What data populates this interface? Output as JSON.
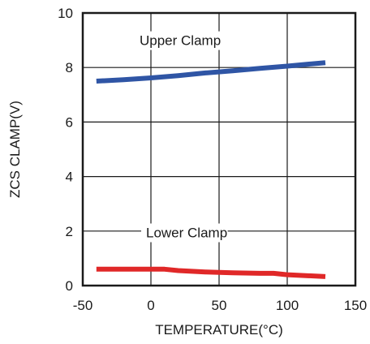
{
  "chart_data": {
    "type": "line",
    "xlabel": "TEMPERATURE(°C)",
    "ylabel": "ZCS CLAMP(V)",
    "xlim": [
      -50,
      150
    ],
    "ylim": [
      0,
      10
    ],
    "xticks": [
      -50,
      0,
      50,
      100,
      150
    ],
    "yticks": [
      0,
      2,
      4,
      6,
      8,
      10
    ],
    "x_tick_labels": [
      "-50",
      "0",
      "50",
      "100",
      "150"
    ],
    "y_tick_labels": [
      "0",
      "2",
      "4",
      "6",
      "8",
      "10"
    ],
    "grid": true,
    "series": [
      {
        "name": "Upper Clamp",
        "color": "#2f55a5",
        "x": [
          -40,
          -20,
          0,
          20,
          40,
          60,
          80,
          100,
          128
        ],
        "y": [
          7.5,
          7.55,
          7.62,
          7.7,
          7.8,
          7.88,
          7.97,
          8.05,
          8.18
        ]
      },
      {
        "name": "Lower Clamp",
        "color": "#e02828",
        "x": [
          -40,
          -20,
          0,
          10,
          20,
          40,
          60,
          80,
          90,
          100,
          128
        ],
        "y": [
          0.6,
          0.6,
          0.6,
          0.6,
          0.55,
          0.5,
          0.47,
          0.45,
          0.45,
          0.4,
          0.33
        ]
      }
    ]
  }
}
